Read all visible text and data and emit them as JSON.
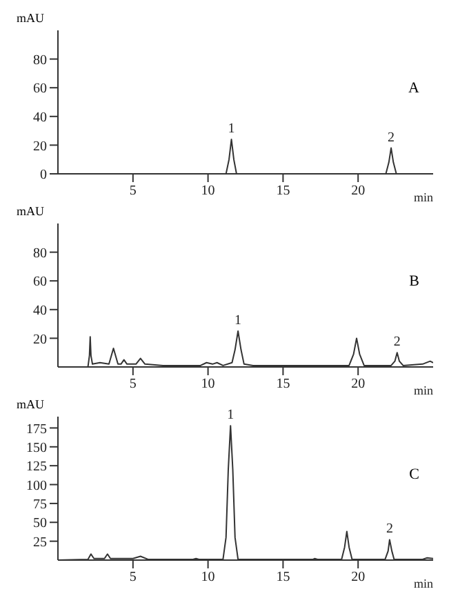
{
  "chart_data": [
    {
      "type": "line",
      "xlabel": "min",
      "ylabel": "mAU",
      "xlim": [
        0,
        25
      ],
      "xticks": [
        5,
        10,
        15,
        20
      ],
      "ylim": [
        0,
        100
      ],
      "yticks": [
        0,
        20,
        40,
        60,
        80
      ],
      "series": [
        {
          "color": "#333333",
          "x": [
            0,
            11.2,
            11.4,
            11.56,
            11.72,
            11.9,
            21.85,
            22.05,
            22.2,
            22.35,
            22.55,
            25
          ],
          "values": [
            0,
            0,
            10,
            24,
            10,
            0,
            0,
            8,
            18,
            8,
            0,
            0
          ]
        }
      ],
      "annotations": [
        "A",
        {
          "text": "1",
          "x": 11.56,
          "y": 24
        },
        {
          "text": "2",
          "x": 22.2,
          "y": 18
        }
      ]
    },
    {
      "type": "line",
      "xlabel": "min",
      "ylabel": "mAU",
      "xlim": [
        0,
        25
      ],
      "xticks": [
        5,
        10,
        15,
        20
      ],
      "ylim": [
        0,
        100
      ],
      "yticks": [
        20,
        40,
        60,
        80
      ],
      "series": [
        {
          "color": "#333333",
          "x": [
            0,
            2.0,
            2.1,
            2.15,
            2.2,
            2.3,
            2.8,
            3.4,
            3.7,
            4.0,
            4.2,
            4.4,
            4.6,
            5.2,
            5.5,
            5.8,
            7,
            9.5,
            9.9,
            10.3,
            10.6,
            11.0,
            11.6,
            11.8,
            12.0,
            12.2,
            12.4,
            13,
            15,
            19.4,
            19.7,
            19.9,
            20.1,
            20.4,
            22.2,
            22.45,
            22.6,
            22.75,
            23.0,
            24.3,
            24.8,
            25
          ],
          "values": [
            0,
            0,
            8,
            21,
            8,
            2,
            3,
            2,
            13,
            2,
            2,
            5,
            2,
            2,
            6,
            2,
            1,
            1,
            3,
            2,
            3,
            1,
            3,
            12,
            25,
            12,
            2,
            1,
            1,
            1,
            9,
            20,
            9,
            1,
            1,
            4,
            10,
            4,
            1,
            2,
            4,
            3
          ]
        }
      ],
      "annotations": [
        "B",
        {
          "text": "1",
          "x": 12.0,
          "y": 25
        },
        {
          "text": "2",
          "x": 22.6,
          "y": 10
        }
      ]
    },
    {
      "type": "line",
      "xlabel": "min",
      "ylabel": "mAU",
      "xlim": [
        0,
        25
      ],
      "xticks": [
        5,
        10,
        15,
        20
      ],
      "ylim": [
        0,
        190
      ],
      "yticks": [
        25,
        50,
        75,
        100,
        125,
        150,
        175
      ],
      "series": [
        {
          "color": "#333333",
          "x": [
            0,
            2.0,
            2.2,
            2.4,
            3.1,
            3.3,
            3.5,
            5.0,
            5.5,
            6.0,
            9.0,
            9.2,
            9.4,
            11.0,
            11.2,
            11.35,
            11.5,
            11.65,
            11.8,
            12.0,
            17.0,
            17.1,
            17.3,
            18.9,
            19.1,
            19.25,
            19.4,
            19.6,
            21.8,
            22.0,
            22.1,
            22.25,
            22.4,
            24.3,
            24.6,
            25
          ],
          "values": [
            0,
            1,
            8,
            2,
            2,
            8,
            2,
            2,
            5,
            1,
            1,
            2,
            1,
            1,
            30,
            120,
            178,
            120,
            30,
            1,
            1,
            2,
            1,
            1,
            17,
            38,
            17,
            1,
            1,
            12,
            27,
            12,
            1,
            1,
            3,
            2
          ]
        }
      ],
      "annotations": [
        "C",
        {
          "text": "1",
          "x": 11.5,
          "y": 178
        },
        {
          "text": "2",
          "x": 22.1,
          "y": 27
        }
      ]
    }
  ]
}
